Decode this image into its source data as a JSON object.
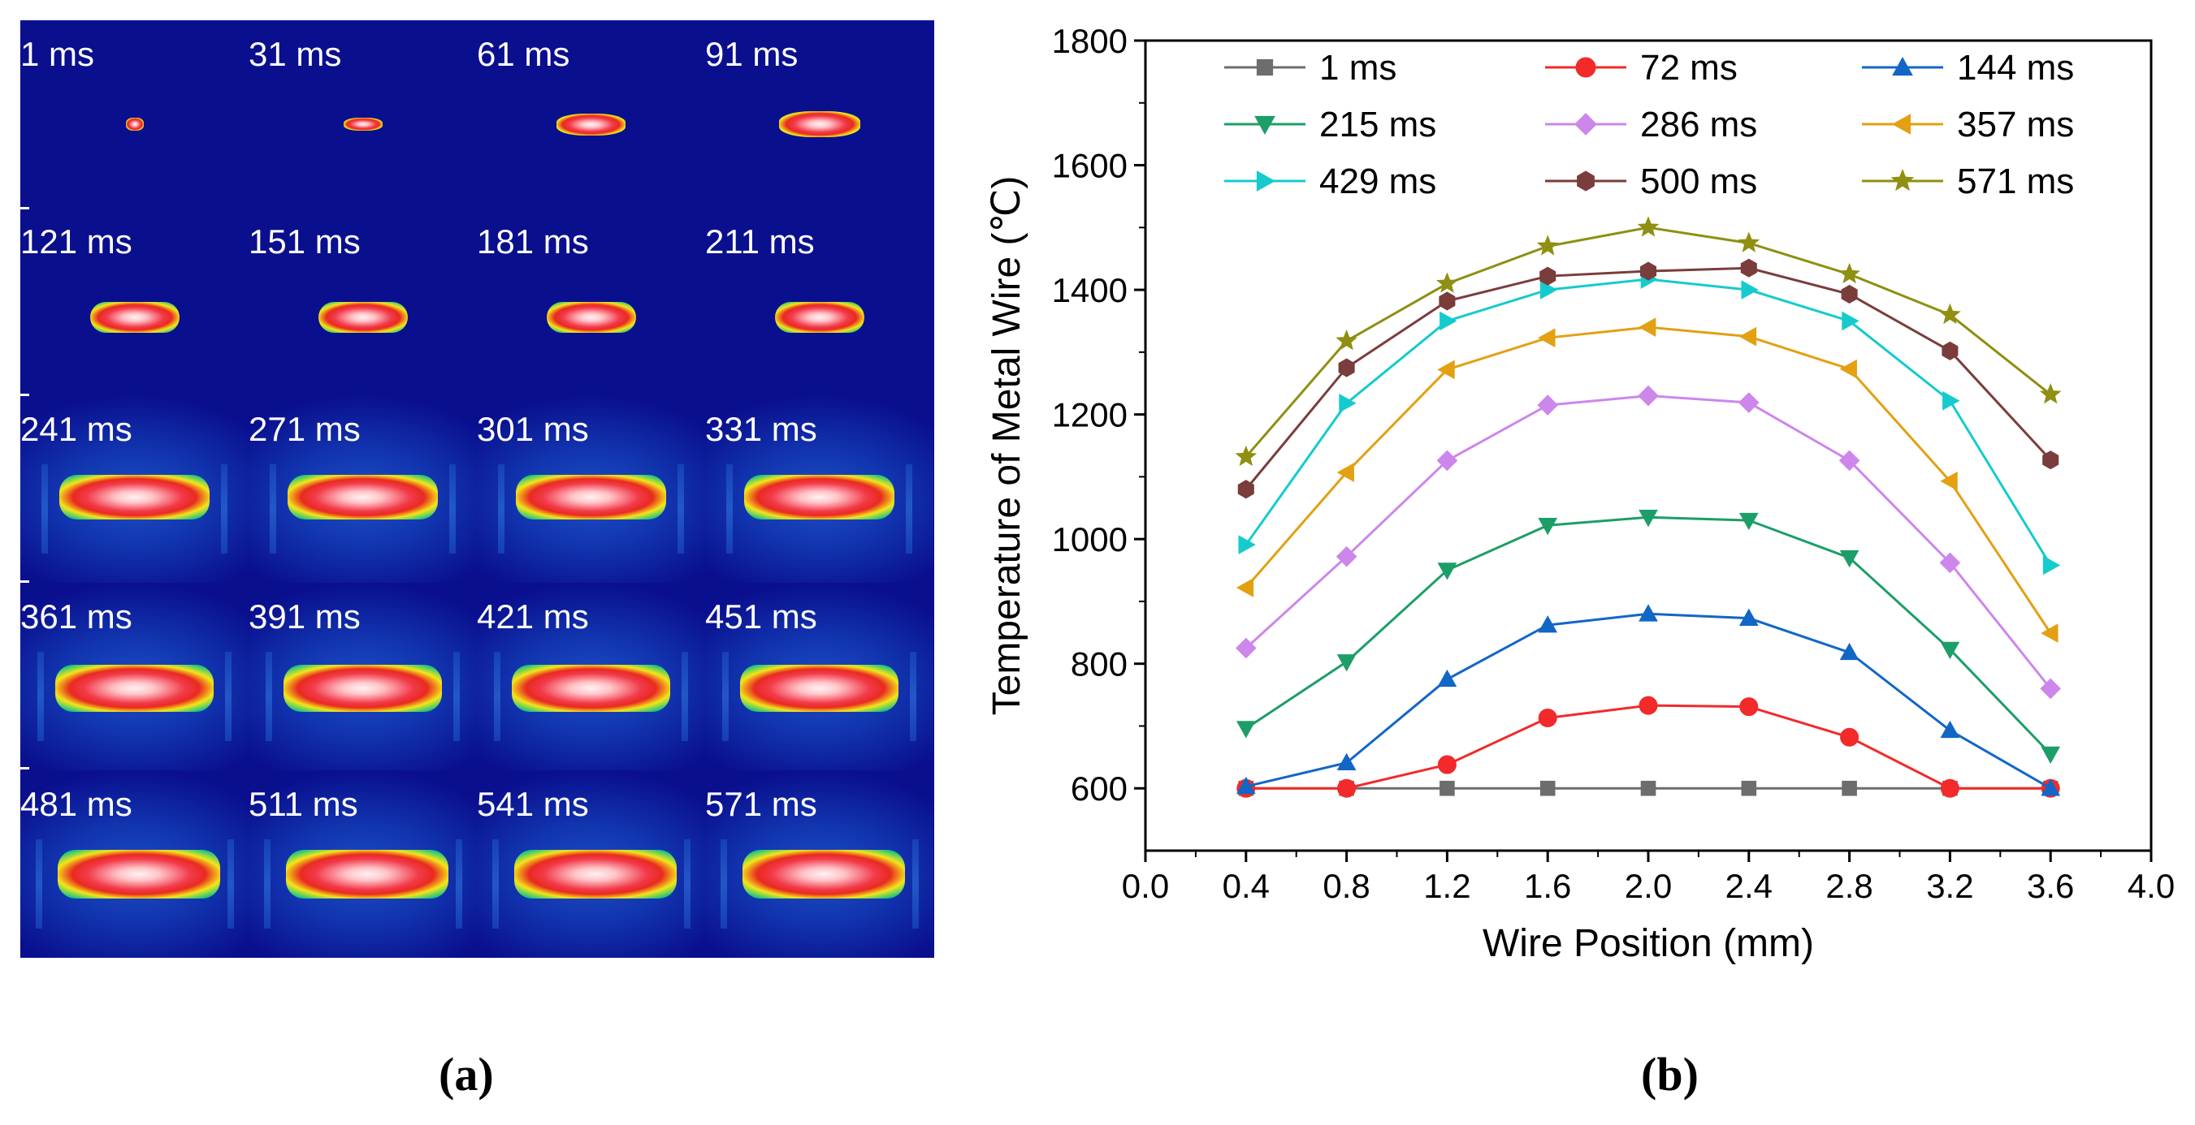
{
  "panel_a": {
    "frames": [
      "1 ms",
      "31 ms",
      "61 ms",
      "91 ms",
      "121 ms",
      "151 ms",
      "181 ms",
      "211 ms",
      "241 ms",
      "271 ms",
      "301 ms",
      "331 ms",
      "361 ms",
      "391 ms",
      "421 ms",
      "451 ms",
      "481 ms",
      "511 ms",
      "541 ms",
      "571 ms"
    ],
    "background_color": "#0a0f8e"
  },
  "captions": {
    "a": "(a)",
    "b": "(b)"
  },
  "chart_data": {
    "type": "line",
    "title": "",
    "xlabel": "Wire Position (mm)",
    "ylabel": "Temperature of Metal Wire (℃)",
    "xlim": [
      0.0,
      4.0
    ],
    "ylim": [
      500,
      1800
    ],
    "xticks": [
      "0.0",
      "0.4",
      "0.8",
      "1.2",
      "1.6",
      "2.0",
      "2.4",
      "2.8",
      "3.2",
      "3.6",
      "4.0"
    ],
    "yticks": [
      "600",
      "800",
      "1000",
      "1200",
      "1400",
      "1600",
      "1800"
    ],
    "x": [
      0.4,
      0.8,
      1.2,
      1.6,
      2.0,
      2.4,
      2.8,
      3.2,
      3.6
    ],
    "legend_position": "top",
    "series": [
      {
        "name": "1 ms",
        "color": "#6d6d6d",
        "marker": "square",
        "values": [
          600,
          600,
          600,
          600,
          600,
          600,
          600,
          600,
          600
        ]
      },
      {
        "name": "72 ms",
        "color": "#f22a2a",
        "marker": "circle",
        "values": [
          600,
          600,
          638,
          713,
          733,
          731,
          682,
          600,
          600
        ]
      },
      {
        "name": "144 ms",
        "color": "#1266c6",
        "marker": "triangle-up",
        "values": [
          603,
          641,
          775,
          862,
          880,
          873,
          818,
          693,
          600
        ]
      },
      {
        "name": "215 ms",
        "color": "#1c9e68",
        "marker": "triangle-down",
        "values": [
          696,
          803,
          950,
          1022,
          1035,
          1030,
          970,
          823,
          655
        ]
      },
      {
        "name": "286 ms",
        "color": "#cd86ec",
        "marker": "diamond",
        "values": [
          825,
          972,
          1126,
          1215,
          1230,
          1219,
          1126,
          962,
          760
        ]
      },
      {
        "name": "357 ms",
        "color": "#e3a012",
        "marker": "triangle-left",
        "values": [
          922,
          1107,
          1272,
          1323,
          1340,
          1325,
          1273,
          1093,
          849
        ]
      },
      {
        "name": "429 ms",
        "color": "#15cbcd",
        "marker": "triangle-right",
        "values": [
          991,
          1218,
          1350,
          1400,
          1417,
          1400,
          1350,
          1222,
          958
        ]
      },
      {
        "name": "500 ms",
        "color": "#7a3d3b",
        "marker": "hexagon",
        "values": [
          1080,
          1275,
          1382,
          1422,
          1430,
          1435,
          1393,
          1302,
          1127
        ]
      },
      {
        "name": "571 ms",
        "color": "#8f8f12",
        "marker": "star",
        "values": [
          1132,
          1318,
          1410,
          1470,
          1500,
          1475,
          1425,
          1360,
          1232
        ]
      }
    ]
  }
}
